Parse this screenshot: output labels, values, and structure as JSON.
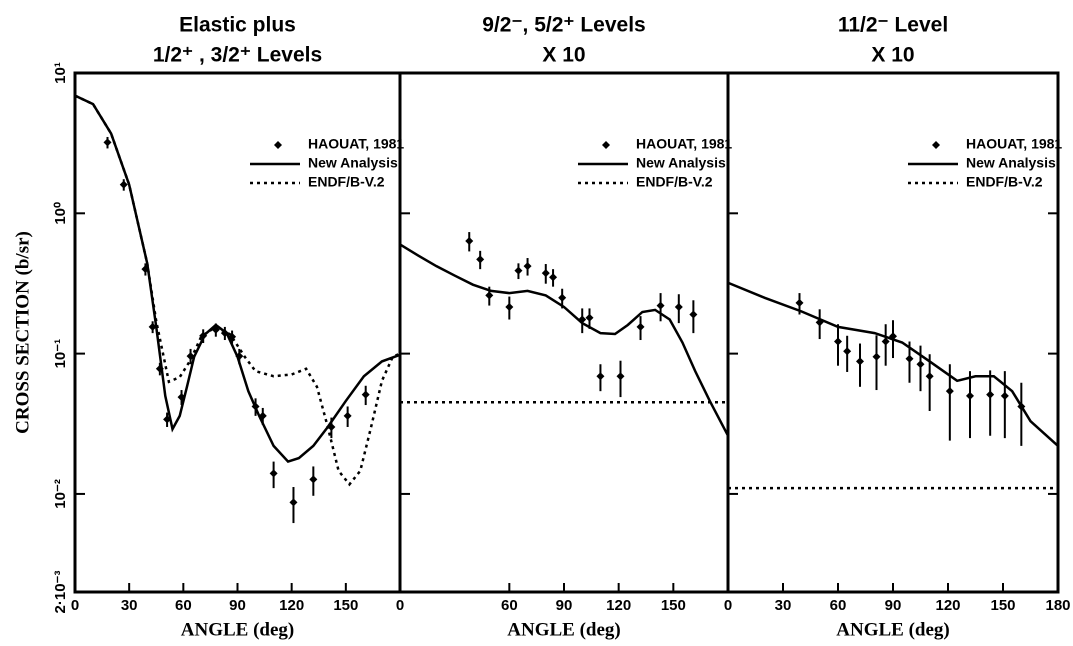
{
  "chart_data": [
    {
      "type": "line",
      "title": "Elastic plus",
      "subtitle": "1/2⁺ , 3/2⁺ Levels",
      "xlabel": "ANGLE (deg)",
      "ylabel": "CROSS SECTION (b/sr)",
      "xlim": [
        0,
        180
      ],
      "xticks": [
        0,
        30,
        60,
        90,
        120,
        150
      ],
      "ylim": [
        0.002,
        10
      ],
      "log_y": true,
      "yticks": [
        {
          "value": 10,
          "label": "10¹"
        },
        {
          "value": 1,
          "label": "10⁰"
        },
        {
          "value": 0.1,
          "label": "10⁻¹"
        },
        {
          "value": 0.01,
          "label": "10⁻²"
        },
        {
          "value": 0.002,
          "label": "2·10⁻³"
        }
      ],
      "legend": "upper right",
      "series": [
        {
          "name": "HAOUAT, 1981",
          "style": "points",
          "color": "#000000",
          "x": [
            18,
            27,
            39,
            43,
            47,
            51,
            59,
            64,
            71,
            78,
            83,
            87,
            91,
            100,
            104,
            110,
            121,
            132,
            142,
            151,
            161
          ],
          "values": [
            3.2,
            1.6,
            0.4,
            0.155,
            0.078,
            0.034,
            0.049,
            0.096,
            0.134,
            0.148,
            0.14,
            0.132,
            0.096,
            0.042,
            0.036,
            0.014,
            0.0087,
            0.0127,
            0.03,
            0.036,
            0.051
          ],
          "errors": [
            0.3,
            0.15,
            0.04,
            0.015,
            0.008,
            0.004,
            0.006,
            0.012,
            0.015,
            0.016,
            0.015,
            0.014,
            0.012,
            0.006,
            0.005,
            0.003,
            0.0025,
            0.003,
            0.005,
            0.006,
            0.008
          ]
        },
        {
          "name": "New Analysis",
          "style": "solid",
          "color": "#000000",
          "x": [
            0,
            10,
            20,
            30,
            40,
            45,
            50,
            54,
            58,
            62,
            66,
            72,
            78,
            84,
            90,
            96,
            102,
            110,
            118,
            124,
            132,
            140,
            150,
            160,
            170,
            180
          ],
          "values": [
            6.9,
            6.0,
            3.7,
            1.6,
            0.44,
            0.155,
            0.05,
            0.029,
            0.036,
            0.058,
            0.095,
            0.137,
            0.16,
            0.14,
            0.095,
            0.054,
            0.036,
            0.022,
            0.017,
            0.018,
            0.022,
            0.03,
            0.046,
            0.069,
            0.088,
            0.098
          ]
        },
        {
          "name": "ENDF/B-V.2",
          "style": "dotted",
          "color": "#000000",
          "x": [
            0,
            10,
            20,
            30,
            40,
            45,
            52,
            58,
            64,
            70,
            78,
            86,
            94,
            100,
            110,
            120,
            128,
            134,
            140,
            146,
            152,
            158,
            164,
            170,
            176,
            180
          ],
          "values": [
            6.9,
            6.0,
            3.7,
            1.6,
            0.44,
            0.17,
            0.063,
            0.068,
            0.09,
            0.133,
            0.155,
            0.137,
            0.095,
            0.075,
            0.069,
            0.071,
            0.078,
            0.058,
            0.03,
            0.0146,
            0.0117,
            0.0146,
            0.03,
            0.064,
            0.095,
            0.1
          ]
        }
      ]
    },
    {
      "type": "line",
      "title": "9/2⁻, 5/2⁺ Levels",
      "subtitle": "X 10",
      "xlabel": "ANGLE (deg)",
      "xlim": [
        0,
        180
      ],
      "xticks": [
        0,
        60,
        90,
        120,
        150
      ],
      "ylim": [
        0.002,
        10
      ],
      "log_y": true,
      "legend": "upper right",
      "series": [
        {
          "name": "HAOUAT, 1981",
          "style": "points",
          "color": "#000000",
          "x": [
            38,
            44,
            49,
            60,
            65,
            70,
            80,
            84,
            89,
            100,
            104,
            110,
            121,
            132,
            143,
            153,
            161
          ],
          "values": [
            0.635,
            0.47,
            0.26,
            0.215,
            0.39,
            0.42,
            0.375,
            0.35,
            0.25,
            0.175,
            0.18,
            0.069,
            0.069,
            0.155,
            0.22,
            0.215,
            0.19
          ],
          "errors": [
            0.1,
            0.07,
            0.04,
            0.04,
            0.05,
            0.06,
            0.06,
            0.05,
            0.04,
            0.035,
            0.03,
            0.015,
            0.02,
            0.03,
            0.05,
            0.05,
            0.05
          ]
        },
        {
          "name": "New Analysis",
          "style": "solid",
          "color": "#000000",
          "x": [
            0,
            10,
            20,
            30,
            40,
            50,
            60,
            70,
            80,
            90,
            100,
            110,
            118,
            125,
            133,
            140,
            148,
            155,
            162,
            170,
            180
          ],
          "values": [
            0.6,
            0.5,
            0.42,
            0.36,
            0.31,
            0.28,
            0.27,
            0.28,
            0.26,
            0.215,
            0.165,
            0.14,
            0.138,
            0.16,
            0.198,
            0.205,
            0.175,
            0.12,
            0.075,
            0.046,
            0.026
          ]
        },
        {
          "name": "ENDF/B-V.2",
          "style": "dotted",
          "color": "#000000",
          "x": [
            0,
            180
          ],
          "values": [
            0.045,
            0.045
          ]
        }
      ]
    },
    {
      "type": "line",
      "title": "11/2⁻ Level",
      "subtitle": "X 10",
      "xlabel": "ANGLE (deg)",
      "xlim": [
        0,
        180
      ],
      "xticks": [
        0,
        30,
        60,
        90,
        120,
        150,
        180
      ],
      "ylim": [
        0.002,
        10
      ],
      "log_y": true,
      "legend": "upper right",
      "series": [
        {
          "name": "HAOUAT, 1981",
          "style": "points",
          "color": "#000000",
          "x": [
            39,
            50,
            60,
            65,
            72,
            81,
            86,
            90,
            99,
            105,
            110,
            121,
            132,
            143,
            151,
            160
          ],
          "values": [
            0.23,
            0.167,
            0.122,
            0.104,
            0.088,
            0.095,
            0.122,
            0.133,
            0.092,
            0.084,
            0.069,
            0.054,
            0.05,
            0.051,
            0.05,
            0.042
          ],
          "errors": [
            0.04,
            0.04,
            0.04,
            0.03,
            0.03,
            0.04,
            0.04,
            0.04,
            0.03,
            0.03,
            0.03,
            0.03,
            0.025,
            0.025,
            0.025,
            0.02
          ]
        },
        {
          "name": "New Analysis",
          "style": "solid",
          "color": "#000000",
          "x": [
            0,
            20,
            40,
            60,
            80,
            95,
            110,
            125,
            135,
            145,
            155,
            165,
            180
          ],
          "values": [
            0.32,
            0.25,
            0.2,
            0.155,
            0.14,
            0.12,
            0.088,
            0.064,
            0.069,
            0.069,
            0.054,
            0.033,
            0.022
          ]
        },
        {
          "name": "ENDF/B-V.2",
          "style": "dotted",
          "color": "#000000",
          "x": [
            0,
            180
          ],
          "values": [
            0.011,
            0.011
          ]
        }
      ]
    }
  ]
}
